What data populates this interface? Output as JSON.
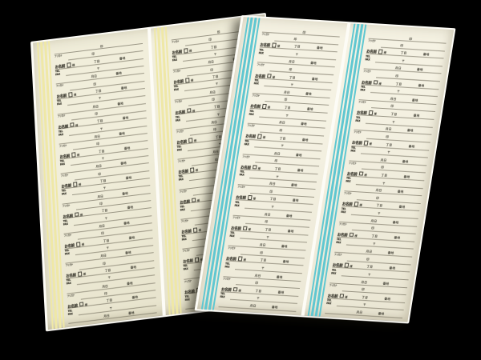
{
  "scene": {
    "description": "Photograph of two overlapping cream Japanese address-list ledger sheets lying on a black background; the rear left sheet has pale-yellow pinstripe accent bands, the front right sheet has turquoise pinstripe accent bands; each sheet holds two columns of small repeated pre-printed entry blocks with ruled lines",
    "background_color": "#000000",
    "rule_line_color": "#68634f",
    "print_color": "#38362c"
  },
  "layout": {
    "sheet_count": 2,
    "columns_per_sheet": 2,
    "blocks_per_column": 9,
    "rows_per_block": 4
  },
  "sheets": [
    {
      "id": "left",
      "stripe_color": "#efe8a6",
      "paper_light": "#f1eedb",
      "paper_dark": "#e4e0c8",
      "edge_color": "#fdfcf6"
    },
    {
      "id": "right",
      "stripe_color": "#5fc7d1",
      "paper_light": "#f5f2e3",
      "paper_dark": "#e9e5d2",
      "edge_color": "#fdfcf6"
    }
  ],
  "form_block": {
    "name_ruby": "フリガナ",
    "name_label": "お名前",
    "name_suffix": "様",
    "row1_mark": "印",
    "row2_mark_a": "丁目",
    "row2_mark_b": "番地",
    "tel_label": "TEL",
    "fax_label": "FAX",
    "row3_mark": "〒",
    "row4_mark_a": "月日",
    "row4_mark_b": "番地",
    "partial_row_mark": "印"
  }
}
